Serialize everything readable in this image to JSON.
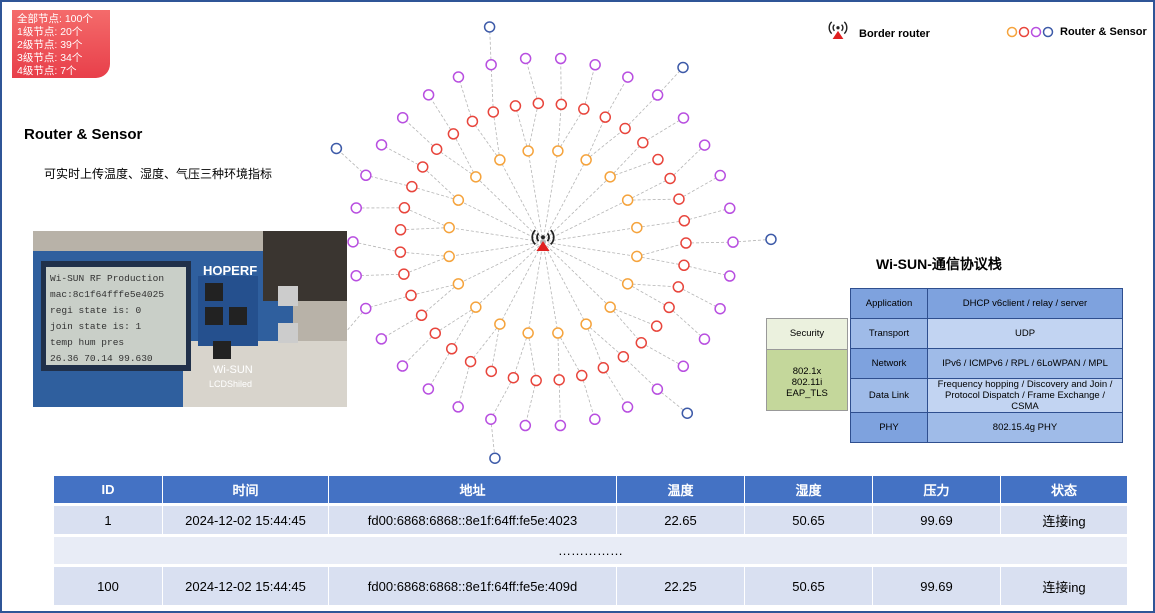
{
  "stats": [
    {
      "label": "全部节点:",
      "count": 100,
      "unit": "个"
    },
    {
      "label": "1级节点:",
      "count": 20,
      "unit": "个",
      "color": "#f5a33c"
    },
    {
      "label": "2级节点:",
      "count": 39,
      "unit": "个",
      "color": "#e8453c"
    },
    {
      "label": "3级节点:",
      "count": 34,
      "unit": "个",
      "color": "#b84fe0"
    },
    {
      "label": "4级节点:",
      "count": 7,
      "unit": "个",
      "color": "#3d5aa8"
    }
  ],
  "left": {
    "title": "Router & Sensor",
    "subtitle": "可实时上传温度、湿度、气压三种环境指标"
  },
  "photo": {
    "brand": "HOPERF",
    "board_label": "Wi-SUN",
    "shield_label": "LCDShiled",
    "lcd_lines": [
      "Wi-SUN RF Production",
      "mac:8c1f64fffe5e4025",
      "regi state is: 0",
      "join state is: 1",
      "temp   hum    pres",
      "26.36  70.14  99.630"
    ]
  },
  "legend": {
    "border_router": "Border router",
    "router_sensor": "Router & Sensor"
  },
  "stack": {
    "title": "Wi-SUN-通信协议栈",
    "layers": [
      [
        "Application",
        "DHCP v6client / relay / server"
      ],
      [
        "Transport",
        "UDP"
      ],
      [
        "Network",
        "IPv6 / ICMPv6 / RPL / 6LoWPAN / MPL"
      ],
      [
        "Data Link",
        "Frequency hopping / Discovery and Join / Protocol Dispatch / Frame Exchange / CSMA"
      ],
      [
        "PHY",
        "802.15.4g PHY"
      ]
    ],
    "security": {
      "title": "Security",
      "items": [
        "802.1x",
        "802.11i",
        "EAP_TLS"
      ]
    }
  },
  "table": {
    "headers": [
      "ID",
      "时间",
      "地址",
      "温度",
      "湿度",
      "压力",
      "状态"
    ],
    "rows": [
      [
        "1",
        "2024-12-02 15:44:45",
        "fd00:6868:6868::8e1f:64ff:fe5e:4023",
        "22.65",
        "50.65",
        "99.69",
        "连接ing"
      ],
      [
        "……………"
      ],
      [
        "100",
        "2024-12-02 15:44:45",
        "fd00:6868:6868::8e1f:64ff:fe5e:409d",
        "22.25",
        "50.65",
        "99.69",
        "连接ing"
      ]
    ]
  }
}
